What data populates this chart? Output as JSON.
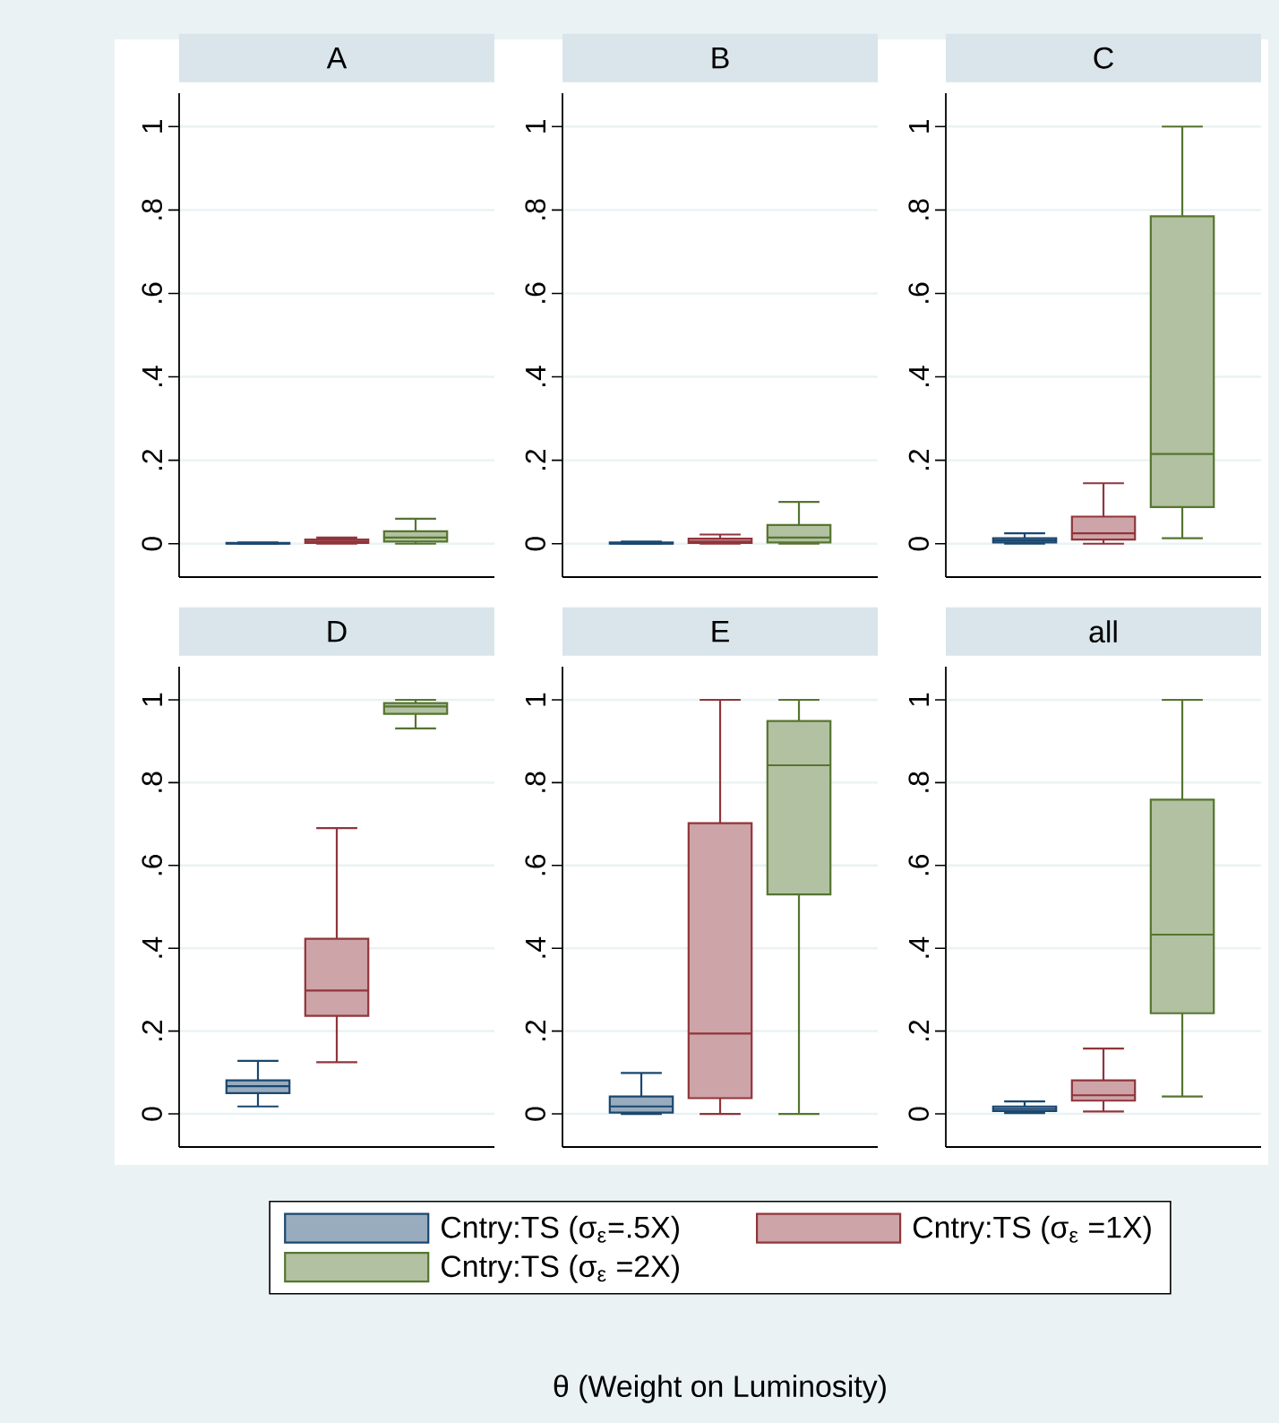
{
  "chart_data": [
    {
      "type": "box",
      "title": "A",
      "categories": [
        null
      ],
      "ylim": [
        -0.08,
        1.08
      ],
      "yticks": [
        0,
        {
          "value": 0.2,
          "label": ".2"
        },
        {
          "value": 0.4,
          "label": ".4"
        },
        {
          "value": 0.6,
          "label": ".6"
        },
        {
          "value": 0.8,
          "label": ".8"
        },
        1
      ],
      "grid": "y",
      "series": [
        {
          "color": "#1a476f",
          "boxes": [
            {
              "low": 0,
              "q1": 0,
              "median": 0.001,
              "q3": 0.002,
              "high": 0.003
            }
          ]
        },
        {
          "color": "#90353b",
          "boxes": [
            {
              "low": 0,
              "q1": 0.002,
              "median": 0.005,
              "q3": 0.01,
              "high": 0.015
            }
          ]
        },
        {
          "color": "#55752f",
          "boxes": [
            {
              "low": 0,
              "q1": 0.005,
              "median": 0.015,
              "q3": 0.03,
              "high": 0.06
            }
          ]
        }
      ]
    },
    {
      "type": "box",
      "title": "B",
      "categories": [
        null
      ],
      "ylim": [
        -0.08,
        1.08
      ],
      "yticks": [
        0,
        {
          "value": 0.2,
          "label": ".2"
        },
        {
          "value": 0.4,
          "label": ".4"
        },
        {
          "value": 0.6,
          "label": ".6"
        },
        {
          "value": 0.8,
          "label": ".8"
        },
        1
      ],
      "grid": "y",
      "series": [
        {
          "color": "#1a476f",
          "boxes": [
            {
              "low": 0,
              "q1": 0,
              "median": 0.001,
              "q3": 0.003,
              "high": 0.005
            }
          ]
        },
        {
          "color": "#90353b",
          "boxes": [
            {
              "low": 0,
              "q1": 0.002,
              "median": 0.005,
              "q3": 0.012,
              "high": 0.022
            }
          ]
        },
        {
          "color": "#55752f",
          "boxes": [
            {
              "low": 0,
              "q1": 0.003,
              "median": 0.015,
              "q3": 0.045,
              "high": 0.1
            }
          ]
        }
      ]
    },
    {
      "type": "box",
      "title": "C",
      "categories": [
        null
      ],
      "ylim": [
        -0.08,
        1.08
      ],
      "yticks": [
        0,
        {
          "value": 0.2,
          "label": ".2"
        },
        {
          "value": 0.4,
          "label": ".4"
        },
        {
          "value": 0.6,
          "label": ".6"
        },
        {
          "value": 0.8,
          "label": ".8"
        },
        1
      ],
      "grid": "y",
      "series": [
        {
          "color": "#1a476f",
          "boxes": [
            {
              "low": 0,
              "q1": 0.003,
              "median": 0.008,
              "q3": 0.013,
              "high": 0.025
            }
          ]
        },
        {
          "color": "#90353b",
          "boxes": [
            {
              "low": 0,
              "q1": 0.01,
              "median": 0.025,
              "q3": 0.065,
              "high": 0.145
            }
          ]
        },
        {
          "color": "#55752f",
          "boxes": [
            {
              "low": 0.013,
              "q1": 0.088,
              "median": 0.215,
              "q3": 0.785,
              "high": 1
            }
          ]
        }
      ]
    },
    {
      "type": "box",
      "title": "D",
      "categories": [
        null
      ],
      "ylim": [
        -0.08,
        1.08
      ],
      "yticks": [
        0,
        {
          "value": 0.2,
          "label": ".2"
        },
        {
          "value": 0.4,
          "label": ".4"
        },
        {
          "value": 0.6,
          "label": ".6"
        },
        {
          "value": 0.8,
          "label": ".8"
        },
        1
      ],
      "grid": "y",
      "series": [
        {
          "color": "#1a476f",
          "boxes": [
            {
              "low": 0.018,
              "q1": 0.05,
              "median": 0.067,
              "q3": 0.081,
              "high": 0.128
            }
          ]
        },
        {
          "color": "#90353b",
          "boxes": [
            {
              "low": 0.125,
              "q1": 0.237,
              "median": 0.298,
              "q3": 0.423,
              "high": 0.69
            }
          ]
        },
        {
          "color": "#55752f",
          "boxes": [
            {
              "low": 0.931,
              "q1": 0.966,
              "median": 0.984,
              "q3": 0.992,
              "high": 1
            }
          ]
        }
      ]
    },
    {
      "type": "box",
      "title": "E",
      "categories": [
        null
      ],
      "ylim": [
        -0.08,
        1.08
      ],
      "yticks": [
        0,
        {
          "value": 0.2,
          "label": ".2"
        },
        {
          "value": 0.4,
          "label": ".4"
        },
        {
          "value": 0.6,
          "label": ".6"
        },
        {
          "value": 0.8,
          "label": ".8"
        },
        1
      ],
      "grid": "y",
      "series": [
        {
          "color": "#1a476f",
          "boxes": [
            {
              "low": 0,
              "q1": 0.003,
              "median": 0.018,
              "q3": 0.042,
              "high": 0.099
            }
          ]
        },
        {
          "color": "#90353b",
          "boxes": [
            {
              "low": 0,
              "q1": 0.038,
              "median": 0.194,
              "q3": 0.702,
              "high": 1
            }
          ]
        },
        {
          "color": "#55752f",
          "boxes": [
            {
              "low": 0,
              "q1": 0.53,
              "median": 0.842,
              "q3": 0.949,
              "high": 1
            }
          ]
        }
      ]
    },
    {
      "type": "box",
      "title": "all",
      "categories": [
        null
      ],
      "ylim": [
        -0.08,
        1.08
      ],
      "yticks": [
        0,
        {
          "value": 0.2,
          "label": ".2"
        },
        {
          "value": 0.4,
          "label": ".4"
        },
        {
          "value": 0.6,
          "label": ".6"
        },
        {
          "value": 0.8,
          "label": ".8"
        },
        1
      ],
      "grid": "y",
      "legend": "bottom",
      "annotations": [
        "θ (Weight on Luminosity)"
      ],
      "series": [
        {
          "name": "Cntry:TS (σ$_{ε}$=.5X)",
          "color": "#1a476f",
          "boxes": [
            {
              "low": 0.002,
              "q1": 0.007,
              "median": 0.012,
              "q3": 0.018,
              "high": 0.03
            }
          ]
        },
        {
          "name": "Cntry:TS (σ$_{ε}$ =1X)",
          "color": "#90353b",
          "boxes": [
            {
              "low": 0.006,
              "q1": 0.032,
              "median": 0.045,
              "q3": 0.081,
              "high": 0.158
            }
          ]
        },
        {
          "name": "Cntry:TS (σ$_{ε}$ =2X)",
          "color": "#55752f",
          "boxes": [
            {
              "low": 0.042,
              "q1": 0.243,
              "median": 0.433,
              "q3": 0.759,
              "high": 1
            }
          ]
        }
      ]
    }
  ]
}
